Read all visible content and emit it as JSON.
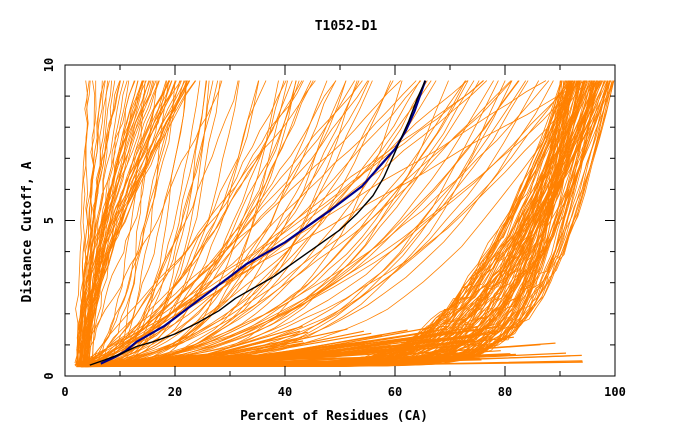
{
  "chart_data": {
    "type": "line",
    "title": "T1052-D1",
    "xlabel": "Percent of Residues (CA)",
    "ylabel": "Distance Cutoff, A",
    "xlim": [
      0,
      100
    ],
    "ylim": [
      0,
      10
    ],
    "x_ticks": [
      "0",
      "20",
      "40",
      "60",
      "80",
      "100"
    ],
    "y_ticks": [
      "0",
      "5",
      "10"
    ],
    "grid": false,
    "legend": "none",
    "colors": {
      "background_series": "#ff8000",
      "highlight_blue": "#00008b",
      "highlight_black": "#000000",
      "axis": "#000000"
    },
    "highlight_series": [
      {
        "color": "#00008b",
        "points": [
          [
            6.5,
            0.4
          ],
          [
            9,
            0.6
          ],
          [
            11,
            0.8
          ],
          [
            13,
            1.1
          ],
          [
            15,
            1.3
          ],
          [
            18,
            1.6
          ],
          [
            21,
            2.0
          ],
          [
            24,
            2.4
          ],
          [
            27,
            2.8
          ],
          [
            30,
            3.2
          ],
          [
            33,
            3.6
          ],
          [
            36,
            3.9
          ],
          [
            40,
            4.3
          ],
          [
            44,
            4.8
          ],
          [
            48,
            5.3
          ],
          [
            51,
            5.7
          ],
          [
            54,
            6.1
          ],
          [
            57,
            6.7
          ],
          [
            60,
            7.3
          ],
          [
            62,
            7.9
          ],
          [
            63.5,
            8.5
          ],
          [
            64.5,
            9.0
          ],
          [
            65.5,
            9.5
          ]
        ]
      },
      {
        "color": "#000000",
        "points": [
          [
            4.5,
            0.35
          ],
          [
            7,
            0.5
          ],
          [
            10,
            0.7
          ],
          [
            13,
            0.95
          ],
          [
            16,
            1.1
          ],
          [
            20,
            1.35
          ],
          [
            24,
            1.7
          ],
          [
            28,
            2.1
          ],
          [
            31,
            2.5
          ],
          [
            34,
            2.8
          ],
          [
            38,
            3.2
          ],
          [
            42,
            3.7
          ],
          [
            46,
            4.2
          ],
          [
            50,
            4.7
          ],
          [
            53,
            5.2
          ],
          [
            56,
            5.8
          ],
          [
            58,
            6.4
          ],
          [
            59.5,
            7.0
          ],
          [
            61,
            7.6
          ],
          [
            62.5,
            8.2
          ],
          [
            64,
            8.9
          ],
          [
            65.5,
            9.5
          ]
        ]
      }
    ],
    "background_series_count": 260,
    "background_random_seed": 1052,
    "y_max_drawn": 9.5,
    "x_min_drawn": 2
  }
}
